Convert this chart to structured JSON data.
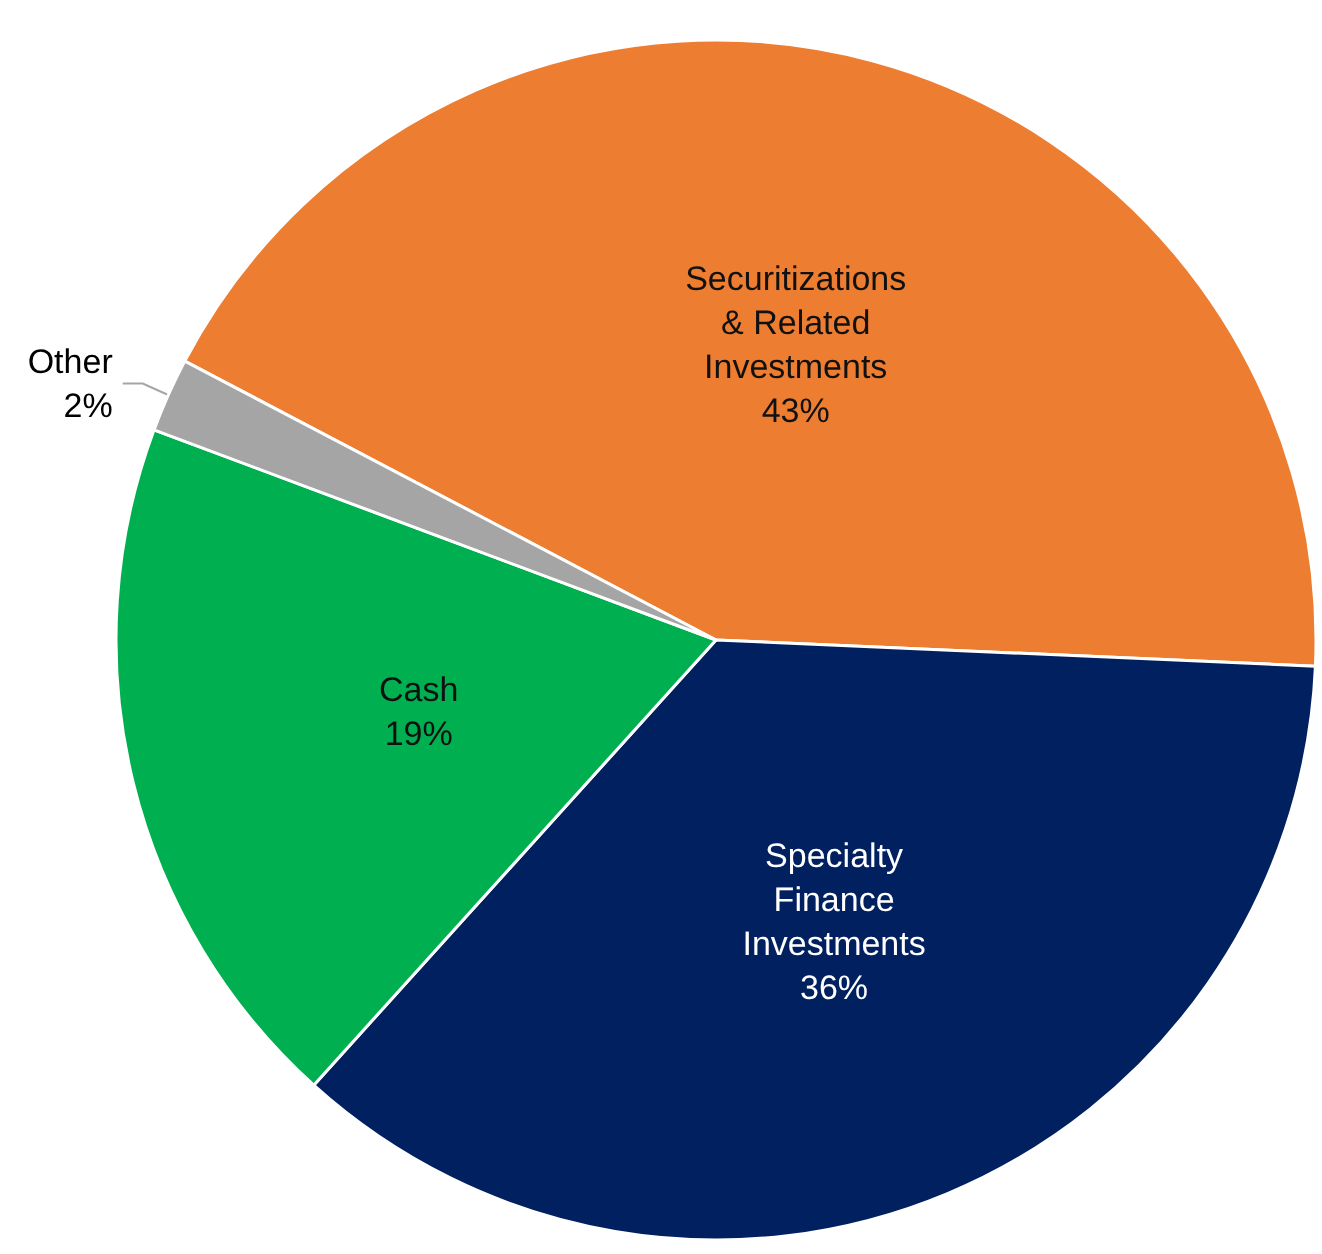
{
  "chart_data": {
    "type": "pie",
    "categories": [
      "Securitizations\n& Related\nInvestments",
      "Specialty\nFinance\nInvestments",
      "Cash",
      "Other"
    ],
    "values": [
      43,
      36,
      19,
      2
    ],
    "colors": [
      "#ed7d31",
      "#002060",
      "#00b050",
      "#a5a5a5"
    ],
    "value_labels": [
      "43%",
      "36%",
      "19%",
      "2%"
    ]
  }
}
